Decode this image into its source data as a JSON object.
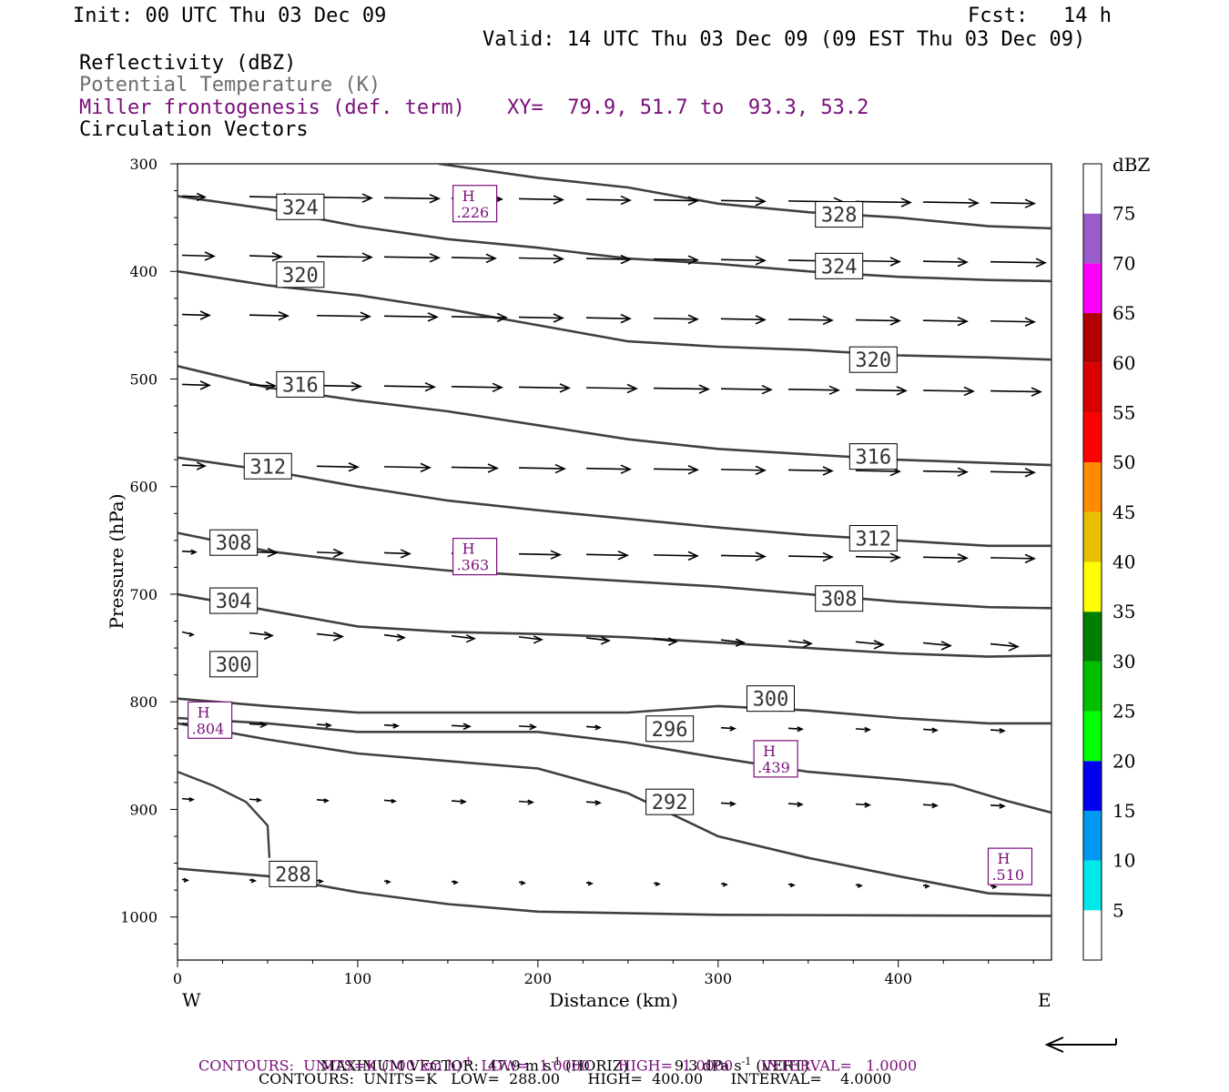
{
  "header": {
    "init": "Init: 00 UTC Thu 03 Dec 09",
    "fcst_label": "Fcst:",
    "fcst_value": "14 h",
    "valid": "Valid: 14 UTC Thu 03 Dec 09 (09 EST Thu 03 Dec 09)",
    "field1": "Reflectivity (dBZ)",
    "field2": "Potential Temperature (K)",
    "field3": "Miller frontogenesis (def. term)",
    "xy": "XY=  79.9, 51.7 to  93.3, 53.2",
    "field4": "Circulation Vectors"
  },
  "colors": {
    "purple": "#7a0f7a",
    "theta": "#404040",
    "vector": "#000000"
  },
  "chart_data": {
    "type": "line",
    "xlabel": "Distance (km)",
    "ylabel": "Pressure (hPa)",
    "x_ticks": [
      0,
      100,
      200,
      300,
      400
    ],
    "y_ticks": [
      300,
      400,
      500,
      600,
      700,
      800,
      900,
      1000
    ],
    "xlim": [
      0,
      485
    ],
    "ylim": [
      1040,
      300
    ],
    "y_scale": "linear (pressure decreasing upward)",
    "x_end_labels": {
      "left": "W",
      "right": "E"
    },
    "theta_contours": [
      {
        "value": 288,
        "points": [
          [
            0,
            955
          ],
          [
            50,
            962
          ],
          [
            100,
            977
          ],
          [
            150,
            988
          ],
          [
            200,
            995
          ],
          [
            300,
            998
          ],
          [
            485,
            999
          ]
        ]
      },
      {
        "value": 292,
        "points": [
          [
            0,
            820
          ],
          [
            50,
            835
          ],
          [
            100,
            848
          ],
          [
            150,
            855
          ],
          [
            200,
            862
          ],
          [
            250,
            885
          ],
          [
            300,
            925
          ],
          [
            350,
            945
          ],
          [
            400,
            962
          ],
          [
            450,
            978
          ],
          [
            485,
            980
          ]
        ]
      },
      {
        "value": 296,
        "points": [
          [
            0,
            815
          ],
          [
            50,
            820
          ],
          [
            100,
            828
          ],
          [
            150,
            828
          ],
          [
            200,
            828
          ],
          [
            250,
            838
          ],
          [
            300,
            852
          ],
          [
            350,
            865
          ],
          [
            400,
            872
          ],
          [
            430,
            877
          ],
          [
            460,
            892
          ],
          [
            485,
            903
          ]
        ]
      },
      {
        "value": 300,
        "points": [
          [
            0,
            797
          ],
          [
            50,
            804
          ],
          [
            100,
            810
          ],
          [
            150,
            810
          ],
          [
            200,
            810
          ],
          [
            250,
            810
          ],
          [
            300,
            804
          ],
          [
            350,
            808
          ],
          [
            400,
            815
          ],
          [
            450,
            820
          ],
          [
            485,
            820
          ]
        ]
      },
      {
        "value": 304,
        "points": [
          [
            0,
            700
          ],
          [
            50,
            715
          ],
          [
            100,
            730
          ],
          [
            150,
            735
          ],
          [
            200,
            737
          ],
          [
            250,
            740
          ],
          [
            300,
            745
          ],
          [
            350,
            750
          ],
          [
            400,
            755
          ],
          [
            450,
            758
          ],
          [
            485,
            757
          ]
        ]
      },
      {
        "value": 308,
        "points": [
          [
            0,
            643
          ],
          [
            50,
            660
          ],
          [
            100,
            670
          ],
          [
            150,
            678
          ],
          [
            200,
            683
          ],
          [
            250,
            688
          ],
          [
            300,
            693
          ],
          [
            350,
            700
          ],
          [
            400,
            707
          ],
          [
            450,
            712
          ],
          [
            485,
            713
          ]
        ]
      },
      {
        "value": 312,
        "points": [
          [
            0,
            573
          ],
          [
            50,
            585
          ],
          [
            100,
            600
          ],
          [
            150,
            613
          ],
          [
            200,
            622
          ],
          [
            250,
            630
          ],
          [
            300,
            638
          ],
          [
            350,
            645
          ],
          [
            400,
            650
          ],
          [
            450,
            655
          ],
          [
            485,
            655
          ]
        ]
      },
      {
        "value": 316,
        "points": [
          [
            0,
            488
          ],
          [
            50,
            508
          ],
          [
            100,
            520
          ],
          [
            150,
            530
          ],
          [
            200,
            543
          ],
          [
            250,
            556
          ],
          [
            300,
            565
          ],
          [
            350,
            570
          ],
          [
            400,
            575
          ],
          [
            450,
            578
          ],
          [
            485,
            580
          ]
        ]
      },
      {
        "value": 320,
        "points": [
          [
            0,
            400
          ],
          [
            50,
            413
          ],
          [
            100,
            422
          ],
          [
            150,
            435
          ],
          [
            200,
            450
          ],
          [
            250,
            465
          ],
          [
            300,
            470
          ],
          [
            350,
            473
          ],
          [
            400,
            478
          ],
          [
            450,
            480
          ],
          [
            485,
            482
          ]
        ]
      },
      {
        "value": 324,
        "points": [
          [
            0,
            330
          ],
          [
            50,
            342
          ],
          [
            100,
            358
          ],
          [
            150,
            370
          ],
          [
            200,
            378
          ],
          [
            250,
            388
          ],
          [
            300,
            393
          ],
          [
            350,
            400
          ],
          [
            400,
            405
          ],
          [
            450,
            408
          ],
          [
            485,
            409
          ]
        ]
      },
      {
        "value": 328,
        "points": [
          [
            145,
            300
          ],
          [
            200,
            313
          ],
          [
            250,
            322
          ],
          [
            300,
            337
          ],
          [
            350,
            345
          ],
          [
            400,
            350
          ],
          [
            450,
            358
          ],
          [
            485,
            360
          ]
        ]
      }
    ],
    "theta_labels": [
      {
        "value": "288",
        "x": 51,
        "p": 960
      },
      {
        "value": "292",
        "x": 260,
        "p": 893
      },
      {
        "value": "296",
        "x": 260,
        "p": 825
      },
      {
        "value": "300",
        "x": 316,
        "p": 797
      },
      {
        "value": "300",
        "x": 18,
        "p": 765
      },
      {
        "value": "304",
        "x": 18,
        "p": 706
      },
      {
        "value": "308",
        "x": 354,
        "p": 704
      },
      {
        "value": "308",
        "x": 18,
        "p": 652
      },
      {
        "value": "312",
        "x": 373,
        "p": 648
      },
      {
        "value": "312",
        "x": 37,
        "p": 581
      },
      {
        "value": "316",
        "x": 373,
        "p": 572
      },
      {
        "value": "316",
        "x": 55,
        "p": 505
      },
      {
        "value": "320",
        "x": 373,
        "p": 482
      },
      {
        "value": "320",
        "x": 55,
        "p": 403
      },
      {
        "value": "324",
        "x": 354,
        "p": 395
      },
      {
        "value": "324",
        "x": 55,
        "p": 340
      },
      {
        "value": "328",
        "x": 354,
        "p": 347
      }
    ],
    "frontogenesis_highs": [
      {
        "label": "H",
        "value": ".226",
        "x": 165,
        "p": 337
      },
      {
        "label": "H",
        "value": ".363",
        "x": 165,
        "p": 665
      },
      {
        "label": "H",
        "value": ".804",
        "x": 18,
        "p": 817
      },
      {
        "label": "H",
        "value": ".439",
        "x": 332,
        "p": 853
      },
      {
        "label": "H",
        "value": ".510",
        "x": 462,
        "p": 953
      }
    ],
    "vector_rows": [
      {
        "p": 330,
        "lens": [
          25,
          48,
          60,
          60,
          55,
          48,
          48,
          48,
          48,
          60,
          60,
          60,
          48
        ]
      },
      {
        "p": 385,
        "lens": [
          35,
          35,
          60,
          60,
          48,
          48,
          48,
          48,
          48,
          48,
          48,
          48,
          60
        ]
      },
      {
        "p": 440,
        "lens": [
          30,
          42,
          58,
          58,
          60,
          48,
          48,
          48,
          48,
          48,
          48,
          48,
          48
        ]
      },
      {
        "p": 505,
        "lens": [
          30,
          28,
          48,
          55,
          55,
          55,
          55,
          60,
          55,
          55,
          55,
          55,
          55
        ]
      },
      {
        "p": 580,
        "lens": [
          25,
          25,
          45,
          50,
          50,
          50,
          48,
          48,
          48,
          48,
          48,
          48,
          48
        ]
      },
      {
        "p": 660,
        "lens": [
          15,
          30,
          28,
          28,
          25,
          45,
          45,
          48,
          48,
          48,
          48,
          48,
          48
        ]
      },
      {
        "p": 735,
        "lens": [
          12,
          25,
          28,
          22,
          25,
          25,
          25,
          25,
          25,
          25,
          30,
          30,
          30
        ]
      },
      {
        "p": 820,
        "lens": [
          12,
          18,
          15,
          15,
          20,
          18,
          15,
          15,
          15,
          15,
          15,
          15,
          15
        ]
      },
      {
        "p": 890,
        "lens": [
          12,
          12,
          12,
          12,
          15,
          15,
          15,
          15,
          15,
          15,
          15,
          15,
          15
        ]
      },
      {
        "p": 965,
        "lens": [
          6,
          6,
          6,
          6,
          6,
          6,
          6,
          6,
          6,
          6,
          6,
          6,
          6
        ]
      }
    ],
    "colorbar": {
      "unit": "dBZ",
      "levels": [
        5,
        10,
        15,
        20,
        25,
        30,
        35,
        40,
        45,
        50,
        55,
        60,
        65,
        70,
        75
      ],
      "colors": [
        "#ffffff",
        "#00e8e8",
        "#0098f0",
        "#0000f0",
        "#00ff00",
        "#00c000",
        "#008000",
        "#ffff00",
        "#e8c000",
        "#ff8c00",
        "#ff0000",
        "#d80000",
        "#b00000",
        "#ff00ff",
        "#9a5cc8",
        "#ffffff"
      ]
    }
  },
  "footer": {
    "max_vector_label": "MAXIMUM VECTOR:",
    "max_vector_horiz": "47.9 m s",
    "horiz_suffix": " (HORIZ)",
    "max_vector_vert": "9.3 dPa s",
    "vert_suffix": " (VERT)",
    "exp": "-1",
    "contours1_a": "CONTOURS:  UNITS=K (100 km h)",
    "contours1_b": "  LOW=  1.0000      HIGH=  1.0000      INTERVAL=   1.0000",
    "contours2": "CONTOURS:  UNITS=K   LOW=  288.00      HIGH=  400.00      INTERVAL=    4.0000"
  }
}
